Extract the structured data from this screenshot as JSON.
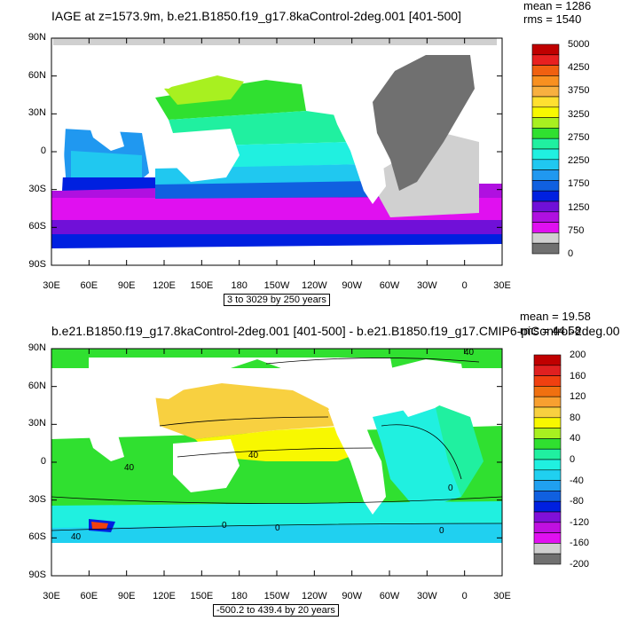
{
  "panels": [
    {
      "title": "IAGE at z=1573.9m, b.e21.B1850.f19_g17.8kaControl-2deg.001 [401-500]",
      "mean": "mean = 1286",
      "rms": "rms = 1540",
      "range_label": "3 to 3029 by 250 years",
      "lat_ticks": [
        "90N",
        "60N",
        "30N",
        "0",
        "30S",
        "60S",
        "90S"
      ],
      "lon_ticks": [
        "30E",
        "60E",
        "90E",
        "120E",
        "150E",
        "180",
        "150W",
        "120W",
        "90W",
        "60W",
        "30W",
        "0",
        "30E"
      ],
      "colorbar_labels": [
        "5000",
        "4250",
        "3750",
        "3250",
        "2750",
        "2250",
        "1750",
        "1250",
        "750",
        "0"
      ],
      "colorbar_colors": [
        "#c00000",
        "#e82020",
        "#f06010",
        "#f89020",
        "#f8b040",
        "#ffe030",
        "#f8f800",
        "#a8f020",
        "#30e030",
        "#20f0a0",
        "#20f0e0",
        "#20c8f0",
        "#2098f0",
        "#1060e0",
        "#0020e0",
        "#7010d8",
        "#b010e0",
        "#e010f0",
        "#d0d0d0",
        "#707070"
      ]
    },
    {
      "title": "b.e21.B1850.f19_g17.8kaControl-2deg.001 [401-500] - b.e21.B1850.f19_g17.CMIP6-piControl-2deg.001",
      "mean": "mean = 19.58",
      "rms": "rms = 44.58",
      "range_label": "-500.2 to 439.4 by 20 years",
      "lat_ticks": [
        "90N",
        "60N",
        "30N",
        "0",
        "30S",
        "60S",
        "90S"
      ],
      "lon_ticks": [
        "30E",
        "60E",
        "90E",
        "120E",
        "150E",
        "180",
        "150W",
        "120W",
        "90W",
        "60W",
        "30W",
        "0",
        "30E"
      ],
      "colorbar_labels": [
        "200",
        "160",
        "120",
        "80",
        "40",
        "0",
        "-40",
        "-80",
        "-120",
        "-160",
        "-200"
      ],
      "colorbar_colors": [
        "#c00000",
        "#e02020",
        "#f04010",
        "#f07010",
        "#f8a030",
        "#f8d040",
        "#f8f800",
        "#a8f020",
        "#30e030",
        "#20f0a0",
        "#20f0e0",
        "#20d0f0",
        "#20a0f0",
        "#1060e0",
        "#0020e0",
        "#8010d8",
        "#c010e0",
        "#e010f0",
        "#d0d0d0",
        "#707070"
      ],
      "contour_labels": [
        "40",
        "0",
        "40",
        "0",
        "0",
        "40",
        "40",
        "0"
      ]
    }
  ]
}
